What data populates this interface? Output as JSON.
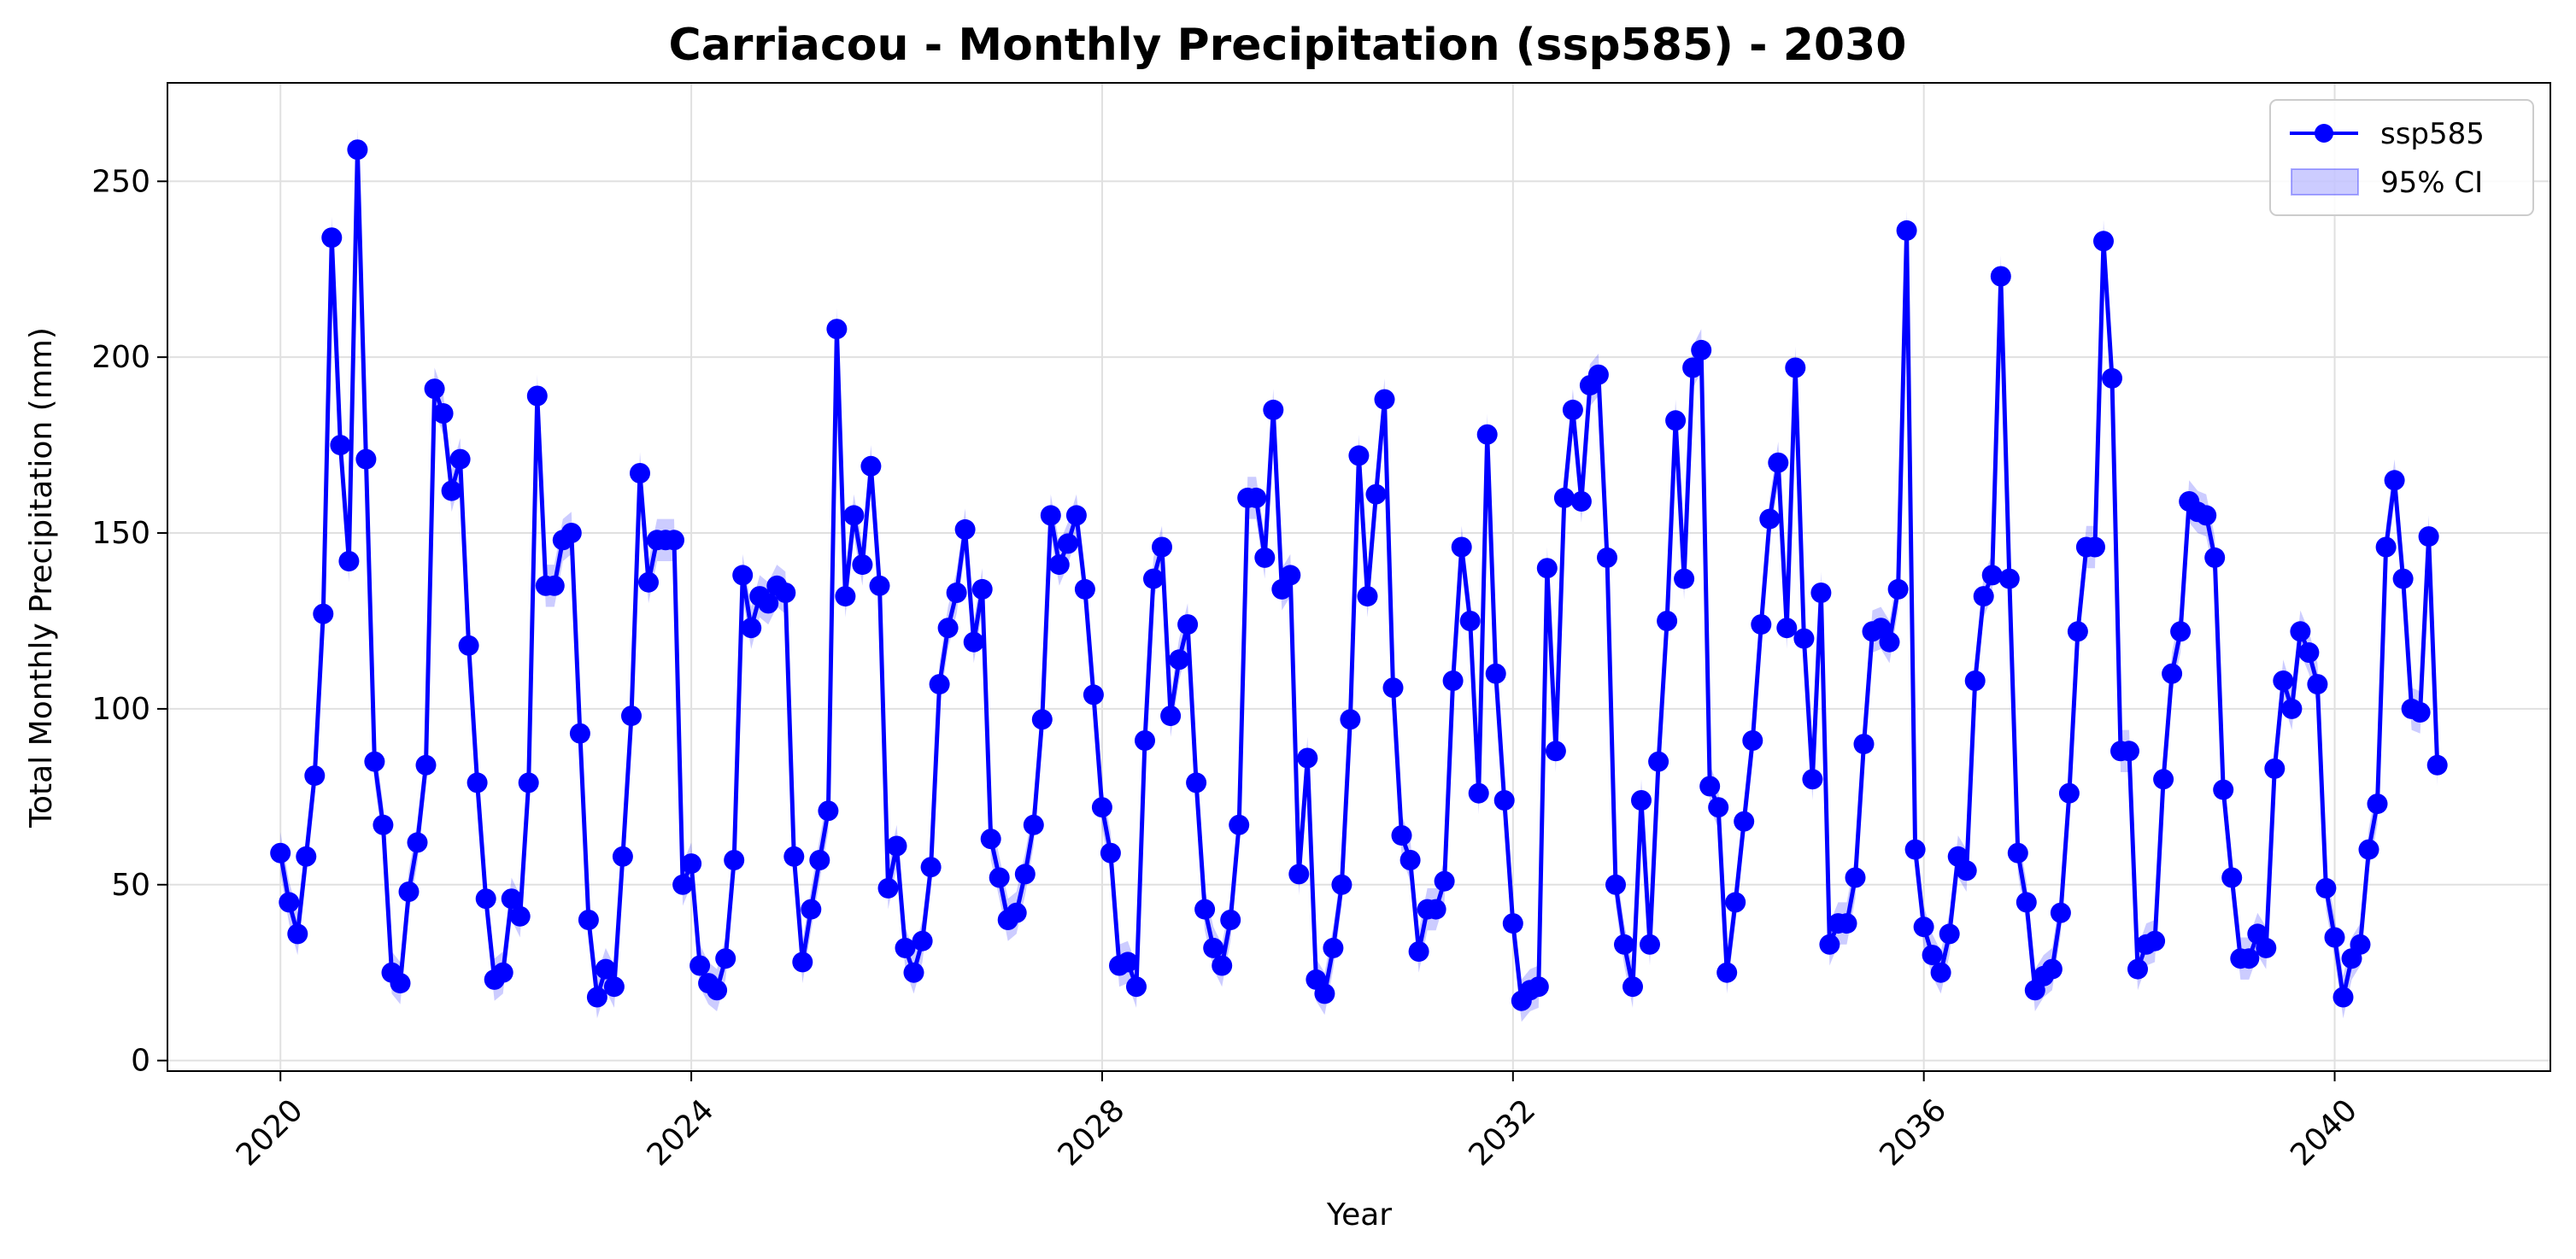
{
  "chart_data": {
    "type": "line",
    "title": "Carriacou - Monthly Precipitation (ssp585) - 2030",
    "xlabel": "Year",
    "ylabel": "Total Monthly Precipitation (mm)",
    "xlim": [
      2018.9,
      2042.1
    ],
    "ylim": [
      -3,
      278
    ],
    "x_ticks": [
      2020,
      2024,
      2028,
      2032,
      2036,
      2040
    ],
    "y_ticks": [
      0,
      50,
      100,
      150,
      200,
      250
    ],
    "grid": true,
    "legend_position": "top-right",
    "x_start": 2020.0,
    "x_step": 0.08333,
    "series": [
      {
        "name": "ssp585",
        "color": "#0000ff",
        "marker": "circle",
        "values": [
          59,
          45,
          36,
          58,
          81,
          127,
          234,
          175,
          142,
          259,
          171,
          85,
          67,
          25,
          22,
          48,
          62,
          84,
          191,
          184,
          162,
          171,
          118,
          79,
          46,
          23,
          25,
          46,
          41,
          79,
          189,
          135,
          135,
          148,
          150,
          93,
          40,
          18,
          26,
          21,
          58,
          98,
          167,
          136,
          148,
          148,
          148,
          50,
          56,
          27,
          22,
          20,
          29,
          57,
          138,
          123,
          132,
          130,
          135,
          133,
          58,
          28,
          43,
          57,
          71,
          208,
          132,
          155,
          141,
          169,
          135,
          49,
          61,
          32,
          25,
          34,
          55,
          107,
          123,
          133,
          151,
          119,
          134,
          63,
          52,
          40,
          42,
          53,
          67,
          97,
          155,
          141,
          147,
          155,
          134,
          104,
          72,
          59,
          27,
          28,
          21,
          91,
          137,
          146,
          98,
          114,
          124,
          79,
          43,
          32,
          27,
          40,
          67,
          160,
          160,
          143,
          185,
          134,
          138,
          53,
          86,
          23,
          19,
          32,
          50,
          97,
          172,
          132,
          161,
          188,
          106,
          64,
          57,
          31,
          43,
          43,
          51,
          108,
          146,
          125,
          76,
          178,
          110,
          74,
          39,
          17,
          20,
          21,
          140,
          88,
          160,
          185,
          159,
          192,
          195,
          143,
          50,
          33,
          21,
          74,
          33,
          85,
          125,
          182,
          137,
          197,
          202,
          78,
          72,
          25,
          45,
          68,
          91,
          124,
          154,
          170,
          123,
          197,
          120,
          80,
          133,
          33,
          39,
          39,
          52,
          90,
          122,
          123,
          119,
          134,
          236,
          60,
          38,
          30,
          25,
          36,
          58,
          54,
          108,
          132,
          138,
          223,
          137,
          59,
          45,
          20,
          24,
          26,
          42,
          76,
          122,
          146,
          146,
          233,
          194,
          88,
          88,
          26,
          33,
          34,
          80,
          110,
          122,
          159,
          156,
          155,
          143,
          77,
          52,
          29,
          29,
          36,
          32,
          83,
          108,
          100,
          122,
          116,
          107,
          49,
          35,
          18,
          29,
          33,
          60,
          73,
          146,
          165,
          137,
          100,
          99,
          149,
          84
        ]
      },
      {
        "name": "95% CI",
        "color": "#0000ff",
        "opacity": 0.2,
        "half_width": 6
      }
    ]
  }
}
